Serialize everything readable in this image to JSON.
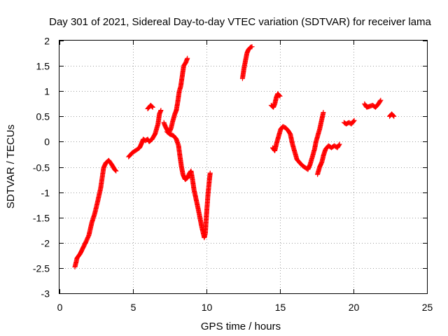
{
  "chart_data": {
    "type": "scatter",
    "title": "Day 301 of 2021, Sidereal Day-to-day VTEC variation (SDTVAR) for receiver lama",
    "xlabel": "GPS time / hours",
    "ylabel": "SDTVAR / TECUs",
    "xlim": [
      0,
      25
    ],
    "ylim": [
      -3,
      2
    ],
    "xticks": [
      0,
      5,
      10,
      15,
      20,
      25
    ],
    "xtick_labels": [
      "0",
      "5",
      "10",
      "15",
      "20",
      "25"
    ],
    "yticks": [
      2,
      1.5,
      1,
      0.5,
      0,
      -0.5,
      -1,
      -1.5,
      -2,
      -2.5,
      -3
    ],
    "ytick_labels": [
      "2",
      "1.5",
      "1",
      "0.5",
      "0",
      "-0.5",
      "-1",
      "-1.5",
      "-2",
      "-2.5",
      "-3"
    ],
    "grid": true,
    "marker": "+",
    "color": "#ff0000",
    "series": [
      {
        "name": "SDTVAR",
        "segments": [
          [
            [
              1.05,
              -2.48
            ],
            [
              1.2,
              -2.3
            ],
            [
              1.4,
              -2.22
            ],
            [
              1.6,
              -2.1
            ],
            [
              1.8,
              -1.98
            ],
            [
              2.0,
              -1.85
            ],
            [
              2.2,
              -1.6
            ],
            [
              2.4,
              -1.42
            ],
            [
              2.6,
              -1.18
            ],
            [
              2.8,
              -0.92
            ],
            [
              3.0,
              -0.52
            ],
            [
              3.15,
              -0.42
            ],
            [
              3.35,
              -0.37
            ],
            [
              3.55,
              -0.45
            ],
            [
              3.75,
              -0.55
            ],
            [
              3.85,
              -0.58
            ]
          ],
          [
            [
              4.7,
              -0.3
            ],
            [
              4.95,
              -0.22
            ],
            [
              5.2,
              -0.17
            ],
            [
              5.45,
              -0.12
            ],
            [
              5.6,
              -0.02
            ],
            [
              5.7,
              0.05
            ],
            [
              5.85,
              0.02
            ],
            [
              6.0,
              0.05
            ],
            [
              6.1,
              0.0
            ],
            [
              6.3,
              0.05
            ],
            [
              6.5,
              0.15
            ],
            [
              6.7,
              0.35
            ],
            [
              6.8,
              0.55
            ],
            [
              6.9,
              0.62
            ]
          ],
          [
            [
              6.0,
              0.65
            ],
            [
              6.2,
              0.72
            ],
            [
              6.35,
              0.68
            ]
          ],
          [
            [
              7.1,
              0.38
            ],
            [
              7.2,
              0.3
            ],
            [
              7.35,
              0.22
            ],
            [
              7.5,
              0.2
            ],
            [
              7.6,
              0.28
            ],
            [
              7.7,
              0.4
            ],
            [
              7.85,
              0.55
            ],
            [
              7.95,
              0.62
            ],
            [
              8.05,
              0.8
            ],
            [
              8.15,
              1.0
            ],
            [
              8.25,
              1.1
            ],
            [
              8.35,
              1.3
            ],
            [
              8.45,
              1.5
            ],
            [
              8.6,
              1.57
            ],
            [
              8.7,
              1.65
            ]
          ],
          [
            [
              7.3,
              0.2
            ],
            [
              7.5,
              0.15
            ],
            [
              7.75,
              0.12
            ],
            [
              7.95,
              0.05
            ],
            [
              8.1,
              -0.08
            ],
            [
              8.2,
              -0.3
            ],
            [
              8.3,
              -0.5
            ],
            [
              8.4,
              -0.65
            ],
            [
              8.55,
              -0.75
            ],
            [
              8.7,
              -0.72
            ],
            [
              8.85,
              -0.62
            ],
            [
              8.95,
              -0.58
            ],
            [
              9.05,
              -0.75
            ],
            [
              9.15,
              -0.95
            ],
            [
              9.3,
              -1.15
            ],
            [
              9.45,
              -1.35
            ],
            [
              9.55,
              -1.5
            ],
            [
              9.65,
              -1.65
            ],
            [
              9.75,
              -1.78
            ],
            [
              9.85,
              -1.9
            ],
            [
              9.92,
              -1.82
            ],
            [
              10.0,
              -1.45
            ],
            [
              10.1,
              -1.05
            ],
            [
              10.2,
              -0.75
            ],
            [
              10.25,
              -0.62
            ]
          ],
          [
            [
              12.45,
              1.25
            ],
            [
              12.55,
              1.45
            ],
            [
              12.65,
              1.6
            ],
            [
              12.75,
              1.75
            ],
            [
              12.85,
              1.82
            ],
            [
              13.0,
              1.87
            ],
            [
              13.1,
              1.88
            ]
          ],
          [
            [
              14.4,
              0.72
            ],
            [
              14.55,
              0.68
            ],
            [
              14.65,
              0.75
            ],
            [
              14.75,
              0.88
            ],
            [
              14.85,
              0.95
            ],
            [
              15.0,
              0.9
            ]
          ],
          [
            [
              14.5,
              -0.12
            ],
            [
              14.65,
              -0.18
            ],
            [
              14.75,
              -0.05
            ],
            [
              14.85,
              0.05
            ],
            [
              14.95,
              0.15
            ],
            [
              15.05,
              0.25
            ],
            [
              15.2,
              0.3
            ],
            [
              15.4,
              0.27
            ],
            [
              15.55,
              0.22
            ],
            [
              15.7,
              0.15
            ],
            [
              15.85,
              -0.05
            ],
            [
              16.0,
              -0.2
            ],
            [
              16.15,
              -0.35
            ],
            [
              16.35,
              -0.42
            ],
            [
              16.55,
              -0.48
            ],
            [
              16.75,
              -0.52
            ],
            [
              16.9,
              -0.55
            ],
            [
              17.05,
              -0.45
            ],
            [
              17.2,
              -0.3
            ],
            [
              17.35,
              -0.15
            ],
            [
              17.45,
              0.0
            ],
            [
              17.55,
              0.1
            ],
            [
              17.7,
              0.25
            ],
            [
              17.85,
              0.45
            ],
            [
              17.95,
              0.58
            ]
          ],
          [
            [
              17.55,
              -0.65
            ],
            [
              17.7,
              -0.5
            ],
            [
              17.85,
              -0.4
            ],
            [
              17.95,
              -0.28
            ],
            [
              18.1,
              -0.15
            ],
            [
              18.3,
              -0.08
            ],
            [
              18.5,
              -0.12
            ],
            [
              18.7,
              -0.08
            ],
            [
              18.9,
              -0.12
            ],
            [
              19.05,
              -0.05
            ]
          ],
          [
            [
              19.35,
              0.38
            ],
            [
              19.5,
              0.35
            ],
            [
              19.7,
              0.38
            ],
            [
              19.85,
              0.35
            ],
            [
              20.05,
              0.42
            ]
          ],
          [
            [
              20.75,
              0.75
            ],
            [
              20.9,
              0.68
            ],
            [
              21.1,
              0.7
            ],
            [
              21.3,
              0.72
            ],
            [
              21.5,
              0.68
            ],
            [
              21.7,
              0.75
            ],
            [
              21.85,
              0.82
            ]
          ],
          [
            [
              22.45,
              0.5
            ],
            [
              22.6,
              0.55
            ],
            [
              22.75,
              0.5
            ]
          ]
        ]
      }
    ]
  }
}
